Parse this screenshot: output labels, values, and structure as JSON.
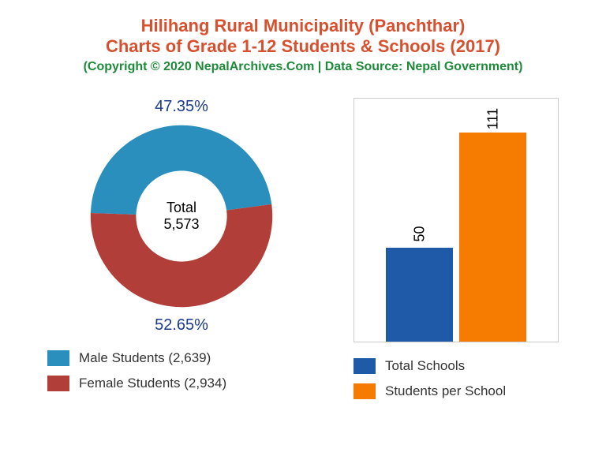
{
  "header": {
    "title_line1": "Hilihang Rural Municipality (Panchthar)",
    "title_line2": "Charts of Grade 1-12 Students & Schools (2017)",
    "title_color": "#d9502e",
    "copyright": "(Copyright © 2020 NepalArchives.Com | Data Source: Nepal Government)",
    "copyright_color": "#1f8a3a"
  },
  "donut": {
    "male_percent": 47.35,
    "female_percent": 52.65,
    "male_percent_label": "47.35%",
    "female_percent_label": "52.65%",
    "male_color": "#2a8fbd",
    "female_color": "#b13e38",
    "percent_male_label_color": "#1a3b8c",
    "percent_female_label_color": "#1a3b8c",
    "center_label": "Total",
    "center_value": "5,573",
    "inner_radius_ratio": 0.5,
    "legend": {
      "male": "Male Students (2,639)",
      "female": "Female Students (2,934)"
    }
  },
  "bar": {
    "schools_value": 50,
    "students_per_school_value": 111,
    "schools_label": "50",
    "students_label": "111",
    "schools_color": "#1e5aa8",
    "students_color": "#f57c00",
    "max_value": 130,
    "legend": {
      "schools": "Total Schools",
      "students": "Students per School"
    }
  },
  "background_color": "#ffffff"
}
